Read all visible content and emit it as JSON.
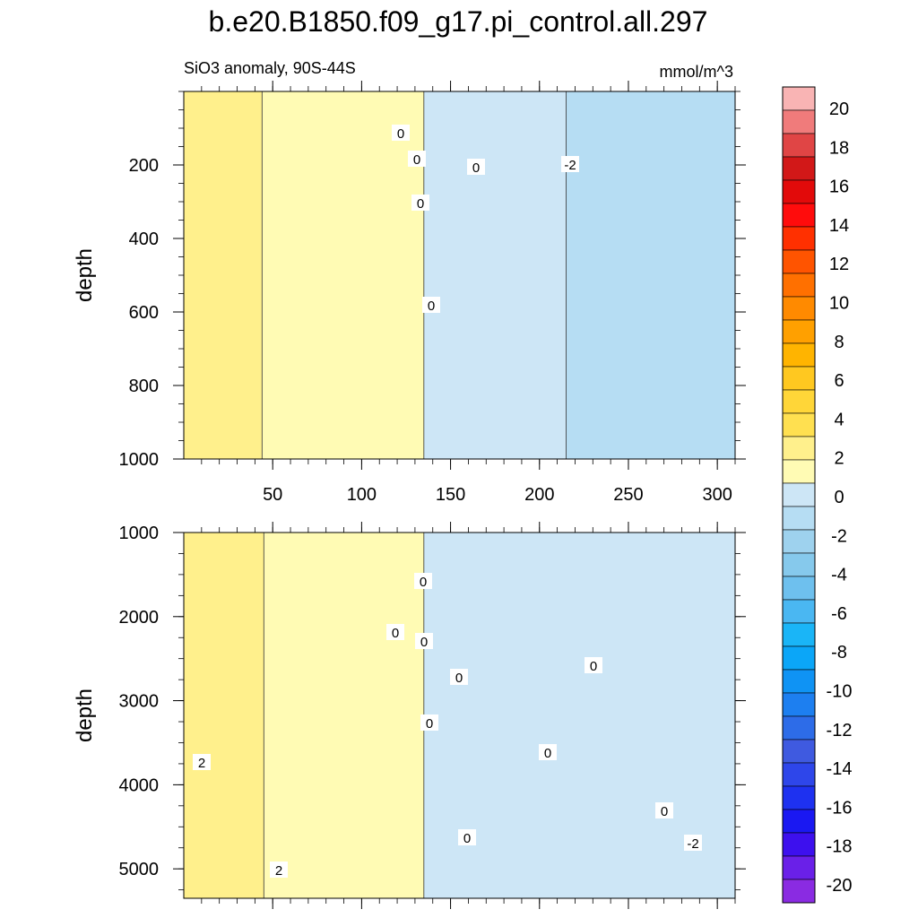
{
  "title": "b.e20.B1850.f09_g17.pi_control.all.297",
  "subtitle": "SiO3 anomaly, 90S-44S",
  "units": "mmol/m^3",
  "chart_data": [
    {
      "type": "heatmap",
      "panel": "upper",
      "ylabel": "depth",
      "xlim": [
        0,
        310
      ],
      "ylim": [
        1000,
        0
      ],
      "x_ticks": [
        50,
        100,
        150,
        200,
        250,
        300
      ],
      "y_ticks": [
        200,
        400,
        600,
        800,
        1000
      ],
      "bands": [
        {
          "x_from": 0,
          "x_to": 44,
          "value": 1.5
        },
        {
          "x_from": 44,
          "x_to": 135,
          "value": 0.5
        },
        {
          "x_from": 135,
          "x_to": 215,
          "value": -0.5
        },
        {
          "x_from": 215,
          "x_to": 310,
          "value": -1.5
        }
      ],
      "contour_labels": [
        "0",
        "0",
        "0",
        "0",
        "0",
        "-2"
      ]
    },
    {
      "type": "heatmap",
      "panel": "lower",
      "ylabel": "depth",
      "xlim": [
        0,
        310
      ],
      "ylim": [
        5350,
        1000
      ],
      "y_ticks": [
        1000,
        2000,
        3000,
        4000,
        5000
      ],
      "bands": [
        {
          "x_from": 0,
          "x_to": 45,
          "value": 1.5
        },
        {
          "x_from": 45,
          "x_to": 135,
          "value": 0.5
        },
        {
          "x_from": 135,
          "x_to": 310,
          "value": -0.5
        }
      ],
      "contour_labels": [
        "0",
        "0",
        "0",
        "0",
        "0",
        "0",
        "0",
        "0",
        "0",
        "2",
        "2",
        "-2"
      ]
    }
  ],
  "colorbar": {
    "labels": [
      "20",
      "18",
      "16",
      "14",
      "12",
      "10",
      "8",
      "6",
      "4",
      "2",
      "0",
      "-2",
      "-4",
      "-6",
      "-8",
      "-10",
      "-12",
      "-14",
      "-16",
      "-18",
      "-20"
    ],
    "colors": [
      "#f9b4b4",
      "#f07b7b",
      "#e04545",
      "#d21818",
      "#e20a0a",
      "#ff0c0c",
      "#ff3000",
      "#ff5400",
      "#ff7000",
      "#ff8a00",
      "#ffa000",
      "#ffb400",
      "#ffc820",
      "#ffd638",
      "#ffe050",
      "#fff08c",
      "#fffbb4",
      "#cde6f6",
      "#b6ddf3",
      "#9ed2ee",
      "#86c9ec",
      "#6ec0ee",
      "#4ab7f2",
      "#1ab5f7",
      "#0ba6f8",
      "#0f93f4",
      "#1d7ff0",
      "#2d6ce8",
      "#3f5ae0",
      "#2e46ea",
      "#1e31f0",
      "#1a18f2",
      "#3d10ee",
      "#6a20e8",
      "#8a2be2"
    ]
  }
}
